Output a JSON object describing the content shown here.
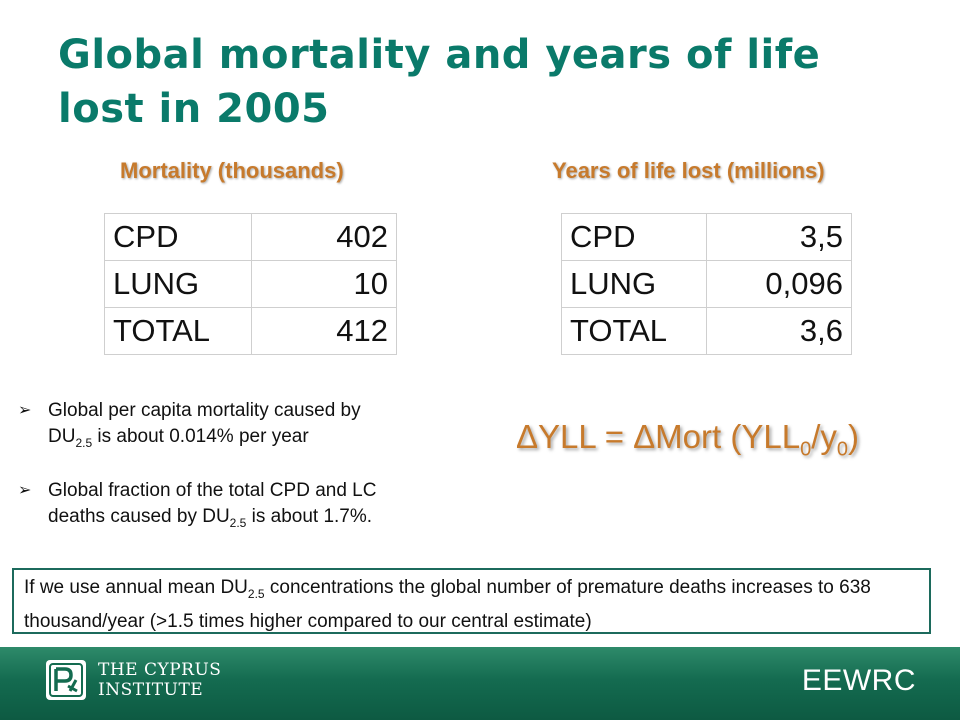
{
  "slide": {
    "title": "Global mortality and years of life lost in 2005"
  },
  "mortality": {
    "heading": "Mortality (thousands)",
    "rows": [
      {
        "label": "CPD",
        "value": "402"
      },
      {
        "label": "LUNG",
        "value": "10"
      },
      {
        "label": "TOTAL",
        "value": "412"
      }
    ]
  },
  "yll": {
    "heading": "Years of life lost (millions)",
    "rows": [
      {
        "label": "CPD",
        "value": "3,5"
      },
      {
        "label": "LUNG",
        "value": "0,096"
      },
      {
        "label": "TOTAL",
        "value": "3,6"
      }
    ]
  },
  "bullets": {
    "b1_line1": "Global per capita mortality caused by",
    "b1_pre": "DU",
    "b1_sub": "2.5",
    "b1_post": " is about 0.014% per year",
    "b2_line1": "Global fraction of the total CPD and LC",
    "b2_pre": "deaths caused by DU",
    "b2_sub": "2.5",
    "b2_post": " is about 1.7%."
  },
  "formula": {
    "pre": "ΔYLL = ΔMort (YLL",
    "sub0": "0",
    "mid": "/y",
    "sub1": "0",
    "post": ")"
  },
  "note": {
    "pre": "If we use annual mean DU",
    "sub": "2.5",
    "post": " concentrations the global number of premature deaths increases to 638 thousand/year (>1.5 times higher compared to our central estimate)"
  },
  "footer": {
    "institute_line1": "THE CYPRUS",
    "institute_line2": "INSTITUTE",
    "eewrc": "EEWRC",
    "logo_icon": "cyprus-institute-logo-icon"
  },
  "colors": {
    "title": "#0a7a6a",
    "heading": "#c77a2c",
    "footer": "#146b50",
    "box_border": "#1c6a5c"
  }
}
